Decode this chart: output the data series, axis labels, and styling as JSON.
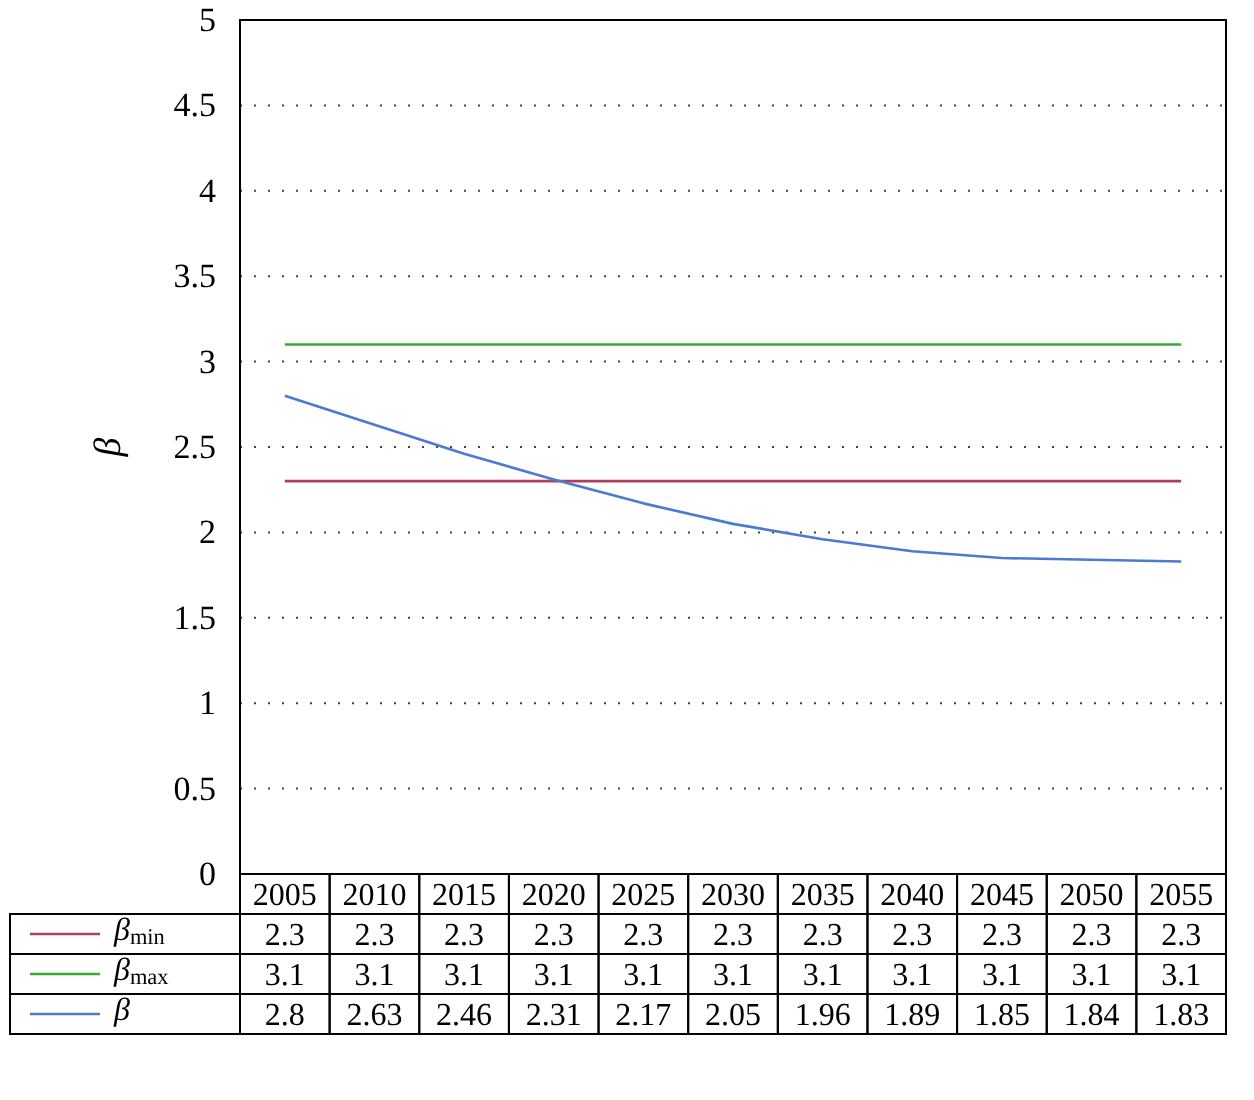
{
  "chart_data": {
    "type": "line",
    "ylabel": "β",
    "categories": [
      "2005",
      "2010",
      "2015",
      "2020",
      "2025",
      "2030",
      "2035",
      "2040",
      "2045",
      "2050",
      "2055"
    ],
    "series": [
      {
        "name": "β$_{min}$",
        "color": "#b0405a",
        "values": [
          2.3,
          2.3,
          2.3,
          2.3,
          2.3,
          2.3,
          2.3,
          2.3,
          2.3,
          2.3,
          2.3
        ]
      },
      {
        "name": "β$_{max}$",
        "color": "#3aaa35",
        "values": [
          3.1,
          3.1,
          3.1,
          3.1,
          3.1,
          3.1,
          3.1,
          3.1,
          3.1,
          3.1,
          3.1
        ]
      },
      {
        "name": "β",
        "color": "#4a7bd0",
        "values": [
          2.8,
          2.63,
          2.46,
          2.31,
          2.17,
          2.05,
          1.96,
          1.89,
          1.85,
          1.84,
          1.83
        ]
      }
    ],
    "ylim": [
      0,
      5
    ],
    "yticks": [
      0,
      0.5,
      1,
      1.5,
      2,
      2.5,
      3,
      3.5,
      4,
      4.5,
      5
    ],
    "grid": "y",
    "line_style": "solid",
    "marker": "none",
    "legend": "bottom",
    "data_labels": true
  }
}
